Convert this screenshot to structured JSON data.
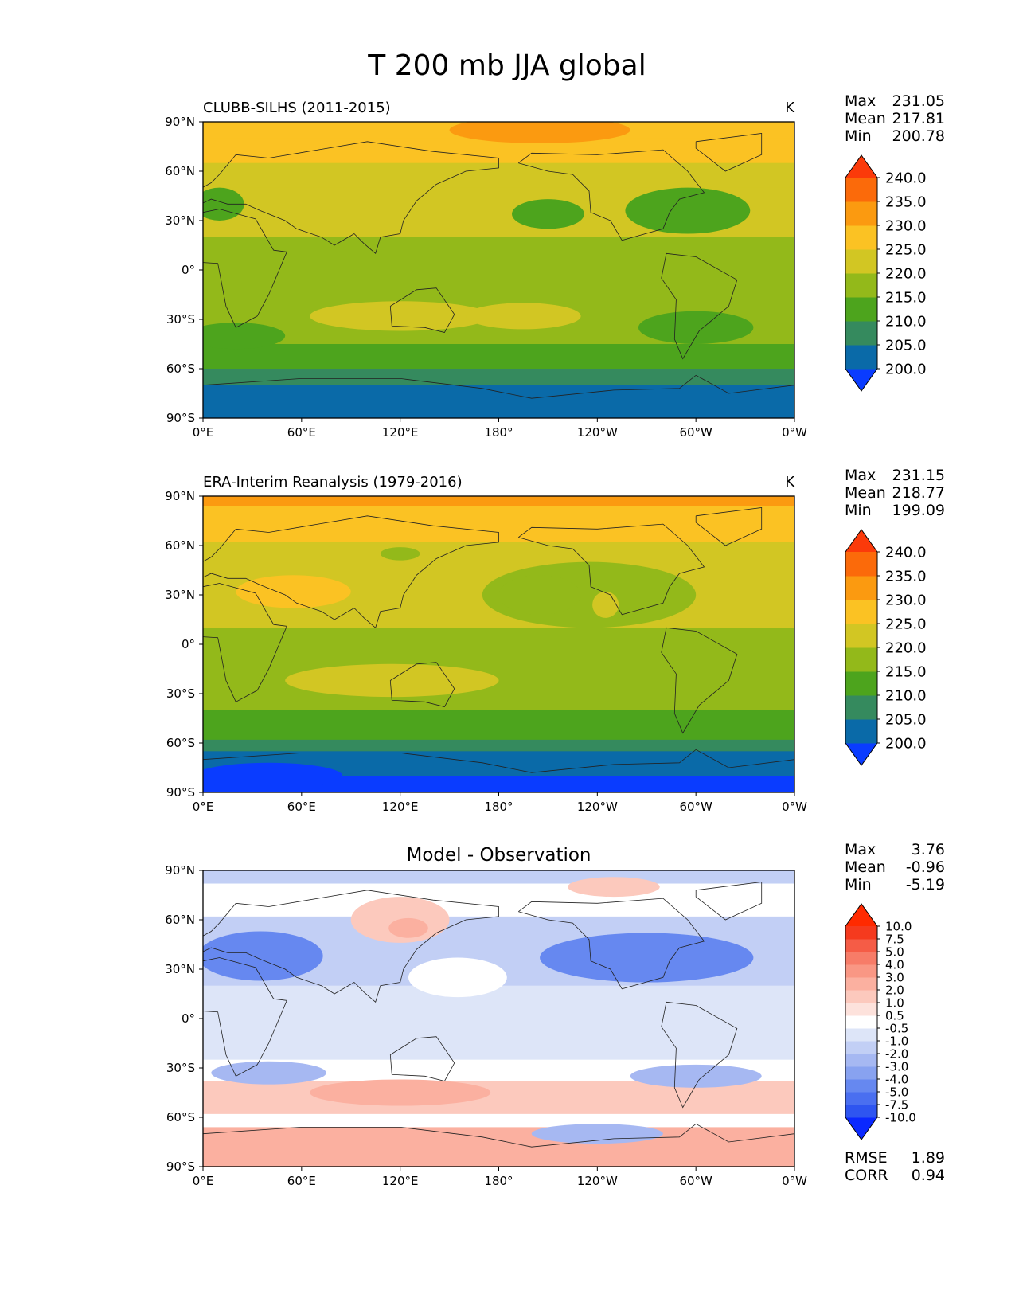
{
  "title": "T 200 mb JJA global",
  "lat_labels": [
    "90°N",
    "60°N",
    "30°N",
    "0°",
    "30°S",
    "60°S",
    "90°S"
  ],
  "lon_labels": [
    "0°E",
    "60°E",
    "120°E",
    "180°",
    "120°W",
    "60°W",
    "0°W"
  ],
  "stat_labels": {
    "max": "Max",
    "mean": "Mean",
    "min": "Min",
    "rmse": "RMSE",
    "corr": "CORR"
  },
  "chart_data": [
    {
      "type": "heatmap",
      "id": "model",
      "title_left": "CLUBB-SILHS (2011-2015)",
      "units": "K",
      "stats": {
        "max": "231.05",
        "mean": "217.81",
        "min": "200.78"
      },
      "colorbar": {
        "ticks": [
          "200.0",
          "205.0",
          "210.0",
          "215.0",
          "220.0",
          "225.0",
          "230.0",
          "235.0",
          "240.0"
        ],
        "colors": [
          "#0a3cff",
          "#0a6aa8",
          "#358a5e",
          "#4da41d",
          "#93b91a",
          "#d2c623",
          "#fbc223",
          "#fb9a10",
          "#fb6a0a",
          "#fb3a0a"
        ],
        "extend": "both"
      },
      "bands": [
        {
          "lat": [
            90,
            80
          ],
          "value": 228,
          "color": "#fbc223"
        },
        {
          "lat": [
            80,
            65
          ],
          "value": 226,
          "color": "#fbc223"
        },
        {
          "lat": [
            65,
            50
          ],
          "value": 222,
          "color": "#d2c623"
        },
        {
          "lat": [
            50,
            20
          ],
          "value": 221,
          "color": "#d2c623"
        },
        {
          "lat": [
            20,
            -15
          ],
          "value": 217,
          "color": "#93b91a"
        },
        {
          "lat": [
            -15,
            -30
          ],
          "value": 218,
          "color": "#93b91a"
        },
        {
          "lat": [
            -30,
            -45
          ],
          "value": 216,
          "color": "#93b91a"
        },
        {
          "lat": [
            -45,
            -60
          ],
          "value": 214,
          "color": "#4da41d"
        },
        {
          "lat": [
            -60,
            -70
          ],
          "value": 208,
          "color": "#358a5e"
        },
        {
          "lat": [
            -70,
            -90
          ],
          "value": 204,
          "color": "#0a6aa8"
        }
      ],
      "patches": [
        {
          "lon": 205,
          "lat": 85,
          "dlon": 55,
          "dlat": 8,
          "value": 232,
          "color": "#fb9a10"
        },
        {
          "lon": 210,
          "lat": 34,
          "dlon": 22,
          "dlat": 9,
          "value": 213,
          "color": "#4da41d"
        },
        {
          "lon": 295,
          "lat": 36,
          "dlon": 38,
          "dlat": 14,
          "value": 213,
          "color": "#4da41d"
        },
        {
          "lon": 10,
          "lat": 40,
          "dlon": 15,
          "dlat": 10,
          "value": 214,
          "color": "#4da41d"
        },
        {
          "lon": 120,
          "lat": -28,
          "dlon": 55,
          "dlat": 9,
          "value": 220,
          "color": "#d2c623"
        },
        {
          "lon": 195,
          "lat": -28,
          "dlon": 35,
          "dlat": 8,
          "value": 220,
          "color": "#d2c623"
        },
        {
          "lon": 300,
          "lat": -35,
          "dlon": 35,
          "dlat": 10,
          "value": 214,
          "color": "#4da41d"
        },
        {
          "lon": 20,
          "lat": -40,
          "dlon": 30,
          "dlat": 8,
          "value": 214,
          "color": "#4da41d"
        }
      ]
    },
    {
      "type": "heatmap",
      "id": "obs",
      "title_left": "ERA-Interim Reanalysis (1979-2016)",
      "units": "K",
      "stats": {
        "max": "231.15",
        "mean": "218.77",
        "min": "199.09"
      },
      "colorbar": {
        "ticks": [
          "200.0",
          "205.0",
          "210.0",
          "215.0",
          "220.0",
          "225.0",
          "230.0",
          "235.0",
          "240.0"
        ],
        "colors": [
          "#0a3cff",
          "#0a6aa8",
          "#358a5e",
          "#4da41d",
          "#93b91a",
          "#d2c623",
          "#fbc223",
          "#fb9a10",
          "#fb6a0a",
          "#fb3a0a"
        ],
        "extend": "both"
      },
      "bands": [
        {
          "lat": [
            90,
            84
          ],
          "value": 231,
          "color": "#fb9a10"
        },
        {
          "lat": [
            84,
            62
          ],
          "value": 227,
          "color": "#fbc223"
        },
        {
          "lat": [
            62,
            10
          ],
          "value": 221,
          "color": "#d2c623"
        },
        {
          "lat": [
            10,
            -15
          ],
          "value": 217,
          "color": "#93b91a"
        },
        {
          "lat": [
            -15,
            -40
          ],
          "value": 219,
          "color": "#93b91a"
        },
        {
          "lat": [
            -40,
            -58
          ],
          "value": 214,
          "color": "#4da41d"
        },
        {
          "lat": [
            -58,
            -65
          ],
          "value": 208,
          "color": "#358a5e"
        },
        {
          "lat": [
            -65,
            -80
          ],
          "value": 204,
          "color": "#0a6aa8"
        },
        {
          "lat": [
            -80,
            -90
          ],
          "value": 199,
          "color": "#0a3cff"
        }
      ],
      "patches": [
        {
          "lon": 55,
          "lat": 32,
          "dlon": 35,
          "dlat": 10,
          "value": 226,
          "color": "#fbc223"
        },
        {
          "lon": 235,
          "lat": 30,
          "dlon": 65,
          "dlat": 20,
          "value": 217,
          "color": "#93b91a"
        },
        {
          "lon": 205,
          "lat": 30,
          "dlon": 25,
          "dlat": 12,
          "value": 218,
          "color": "#93b91a"
        },
        {
          "lon": 245,
          "lat": 24,
          "dlon": 8,
          "dlat": 8,
          "value": 222,
          "color": "#d2c623"
        },
        {
          "lon": 115,
          "lat": -22,
          "dlon": 65,
          "dlat": 10,
          "value": 221,
          "color": "#d2c623"
        },
        {
          "lon": 120,
          "lat": 55,
          "dlon": 12,
          "dlat": 4,
          "value": 216,
          "color": "#93b91a"
        },
        {
          "lon": 40,
          "lat": -80,
          "dlon": 45,
          "dlat": 8,
          "value": 199,
          "color": "#0a3cff"
        }
      ]
    },
    {
      "type": "heatmap",
      "id": "diff",
      "title_center": "Model - Observation",
      "stats": {
        "max": "3.76",
        "mean": "-0.96",
        "min": "-5.19",
        "rmse": "1.89",
        "corr": "0.94"
      },
      "colorbar": {
        "ticks": [
          "-10.0",
          "-7.5",
          "-5.0",
          "-4.0",
          "-3.0",
          "-2.0",
          "-1.0",
          "-0.5",
          "0.5",
          "1.0",
          "2.0",
          "3.0",
          "4.0",
          "5.0",
          "7.5",
          "10.0"
        ],
        "colors": [
          "#0a28ff",
          "#2e55f0",
          "#4a6ff0",
          "#6688f0",
          "#88a2f0",
          "#a6b8f2",
          "#c2cff5",
          "#dde5f8",
          "#ffffff",
          "#fde2dc",
          "#fcc9bd",
          "#fbb0a0",
          "#f99784",
          "#f77c68",
          "#f55c46",
          "#f53a1e",
          "#ff2a00"
        ],
        "extend": "both"
      },
      "bands": [
        {
          "lat": [
            90,
            82
          ],
          "value": -1.0,
          "color": "#c2cff5"
        },
        {
          "lat": [
            82,
            62
          ],
          "value": 0.0,
          "color": "#ffffff"
        },
        {
          "lat": [
            62,
            20
          ],
          "value": -1.5,
          "color": "#c2cff5"
        },
        {
          "lat": [
            20,
            -25
          ],
          "value": -0.8,
          "color": "#dde5f8"
        },
        {
          "lat": [
            -25,
            -38
          ],
          "value": 0.0,
          "color": "#ffffff"
        },
        {
          "lat": [
            -38,
            -58
          ],
          "value": 1.5,
          "color": "#fcc9bd"
        },
        {
          "lat": [
            -58,
            -66
          ],
          "value": 0.0,
          "color": "#ffffff"
        },
        {
          "lat": [
            -66,
            -90
          ],
          "value": 2.0,
          "color": "#fbb0a0"
        }
      ],
      "patches": [
        {
          "lon": 270,
          "lat": 37,
          "dlon": 65,
          "dlat": 15,
          "value": -4.0,
          "color": "#6688f0"
        },
        {
          "lon": 35,
          "lat": 38,
          "dlon": 38,
          "dlat": 15,
          "value": -4.0,
          "color": "#6688f0"
        },
        {
          "lon": 120,
          "lat": 60,
          "dlon": 30,
          "dlat": 14,
          "value": 2.0,
          "color": "#fcc9bd"
        },
        {
          "lon": 125,
          "lat": 55,
          "dlon": 12,
          "dlat": 6,
          "value": 3.0,
          "color": "#fbb0a0"
        },
        {
          "lon": 155,
          "lat": 25,
          "dlon": 30,
          "dlat": 12,
          "value": 0.0,
          "color": "#ffffff"
        },
        {
          "lon": 250,
          "lat": 80,
          "dlon": 28,
          "dlat": 6,
          "value": 1.5,
          "color": "#fcc9bd"
        },
        {
          "lon": 120,
          "lat": -45,
          "dlon": 55,
          "dlat": 8,
          "value": 3.0,
          "color": "#fbb0a0"
        },
        {
          "lon": 40,
          "lat": -78,
          "dlon": 40,
          "dlat": 8,
          "value": 3.0,
          "color": "#fbb0a0"
        },
        {
          "lon": 240,
          "lat": -70,
          "dlon": 40,
          "dlat": 6,
          "value": -2.0,
          "color": "#a6b8f2"
        },
        {
          "lon": 300,
          "lat": -35,
          "dlon": 40,
          "dlat": 7,
          "value": -2.0,
          "color": "#a6b8f2"
        },
        {
          "lon": 40,
          "lat": -33,
          "dlon": 35,
          "dlat": 7,
          "value": -2.0,
          "color": "#a6b8f2"
        }
      ]
    }
  ]
}
